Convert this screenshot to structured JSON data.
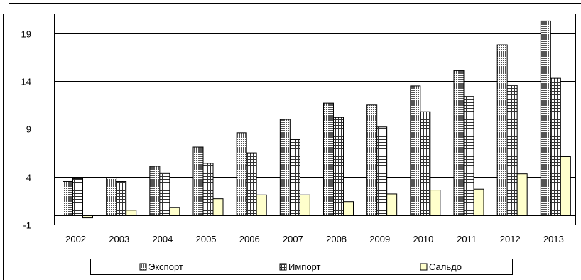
{
  "chart_data": {
    "type": "bar",
    "categories": [
      "2002",
      "2003",
      "2004",
      "2005",
      "2006",
      "2007",
      "2008",
      "2009",
      "2010",
      "2011",
      "2012",
      "2013"
    ],
    "series": [
      {
        "name": "Экспорт",
        "values": [
          3.5,
          3.9,
          5.1,
          7.1,
          8.6,
          10.0,
          11.7,
          11.5,
          13.5,
          15.1,
          17.8,
          20.3
        ],
        "pattern": "dots",
        "color": "#808080"
      },
      {
        "name": "Импорт",
        "values": [
          3.8,
          3.5,
          4.4,
          5.4,
          6.5,
          7.9,
          10.2,
          9.2,
          10.8,
          12.4,
          13.6,
          14.3
        ],
        "pattern": "grid",
        "color": "#808080"
      },
      {
        "name": "Сальдо",
        "values": [
          -0.3,
          0.5,
          0.8,
          1.7,
          2.1,
          2.1,
          1.4,
          2.2,
          2.6,
          2.7,
          4.3,
          6.1
        ],
        "pattern": "solid",
        "color": "#ffffcc"
      }
    ],
    "y_ticks": [
      "-1",
      "4",
      "9",
      "14",
      "19"
    ],
    "ylim": [
      -1,
      21
    ],
    "grid": true,
    "legend_position": "bottom",
    "title": "",
    "xlabel": "",
    "ylabel": ""
  }
}
